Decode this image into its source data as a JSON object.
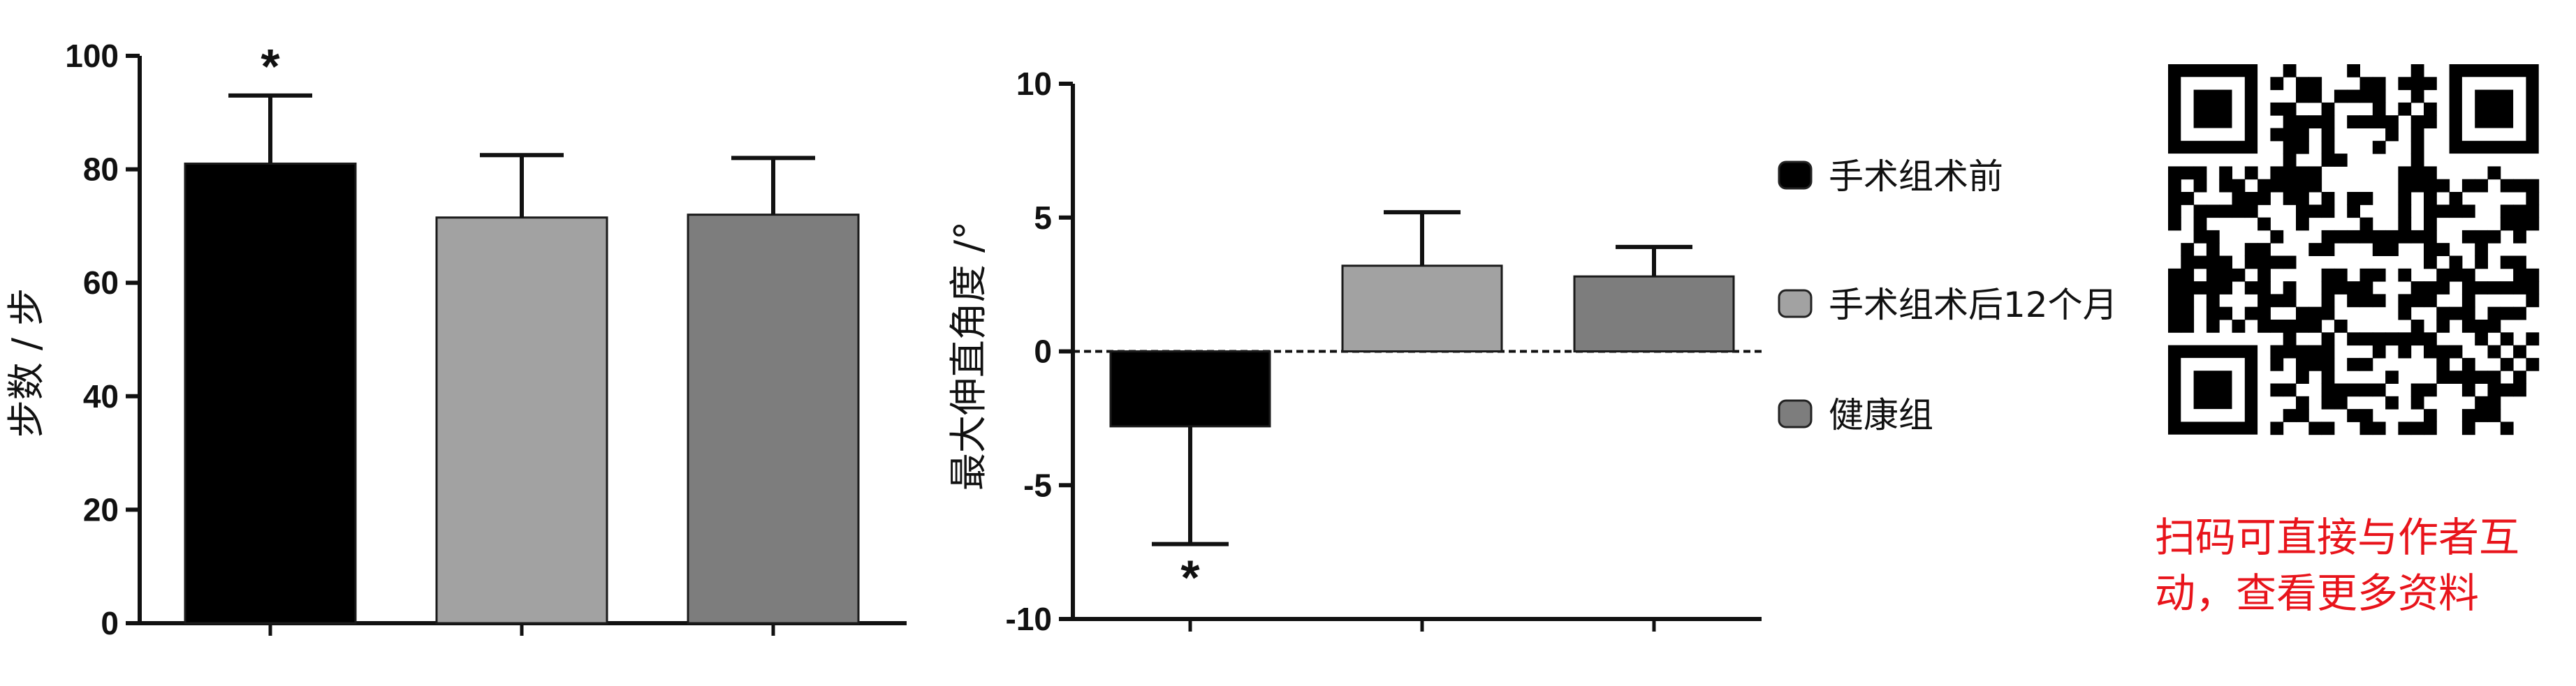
{
  "chart_data": [
    {
      "type": "bar",
      "ylabel": "步数 / 步",
      "ylim": [
        0,
        100
      ],
      "yticks": [
        0,
        20,
        40,
        60,
        80,
        100
      ],
      "categories": [
        "手术组术前",
        "手术组术后12个月",
        "健康组"
      ],
      "values": [
        81,
        71.5,
        72
      ],
      "errors": [
        12,
        11,
        10
      ],
      "colors": [
        "#000000",
        "#a2a2a2",
        "#7d7d7d"
      ],
      "annotations": [
        "*",
        "",
        ""
      ],
      "grid": false
    },
    {
      "type": "bar",
      "ylabel": "最大伸直角度 /°",
      "ylim": [
        -10,
        10
      ],
      "yticks": [
        -10,
        -5,
        0,
        5,
        10
      ],
      "categories": [
        "手术组术前",
        "手术组术后12个月",
        "健康组"
      ],
      "values": [
        -2.8,
        3.2,
        2.8
      ],
      "errors": [
        4.4,
        2.0,
        1.1
      ],
      "colors": [
        "#000000",
        "#a2a2a2",
        "#7d7d7d"
      ],
      "annotations": [
        "*",
        "",
        ""
      ],
      "reference_line": 0,
      "grid": false,
      "legend": {
        "placement": "right",
        "entries": [
          "手术组术前",
          "手术组术后12个月",
          "健康组"
        ]
      }
    }
  ],
  "qr": {
    "caption_line1": "扫码可直接与作者互",
    "caption_line2": "动，查看更多资料",
    "caption_color": "#e8141b",
    "icon": "qr-code-icon"
  }
}
